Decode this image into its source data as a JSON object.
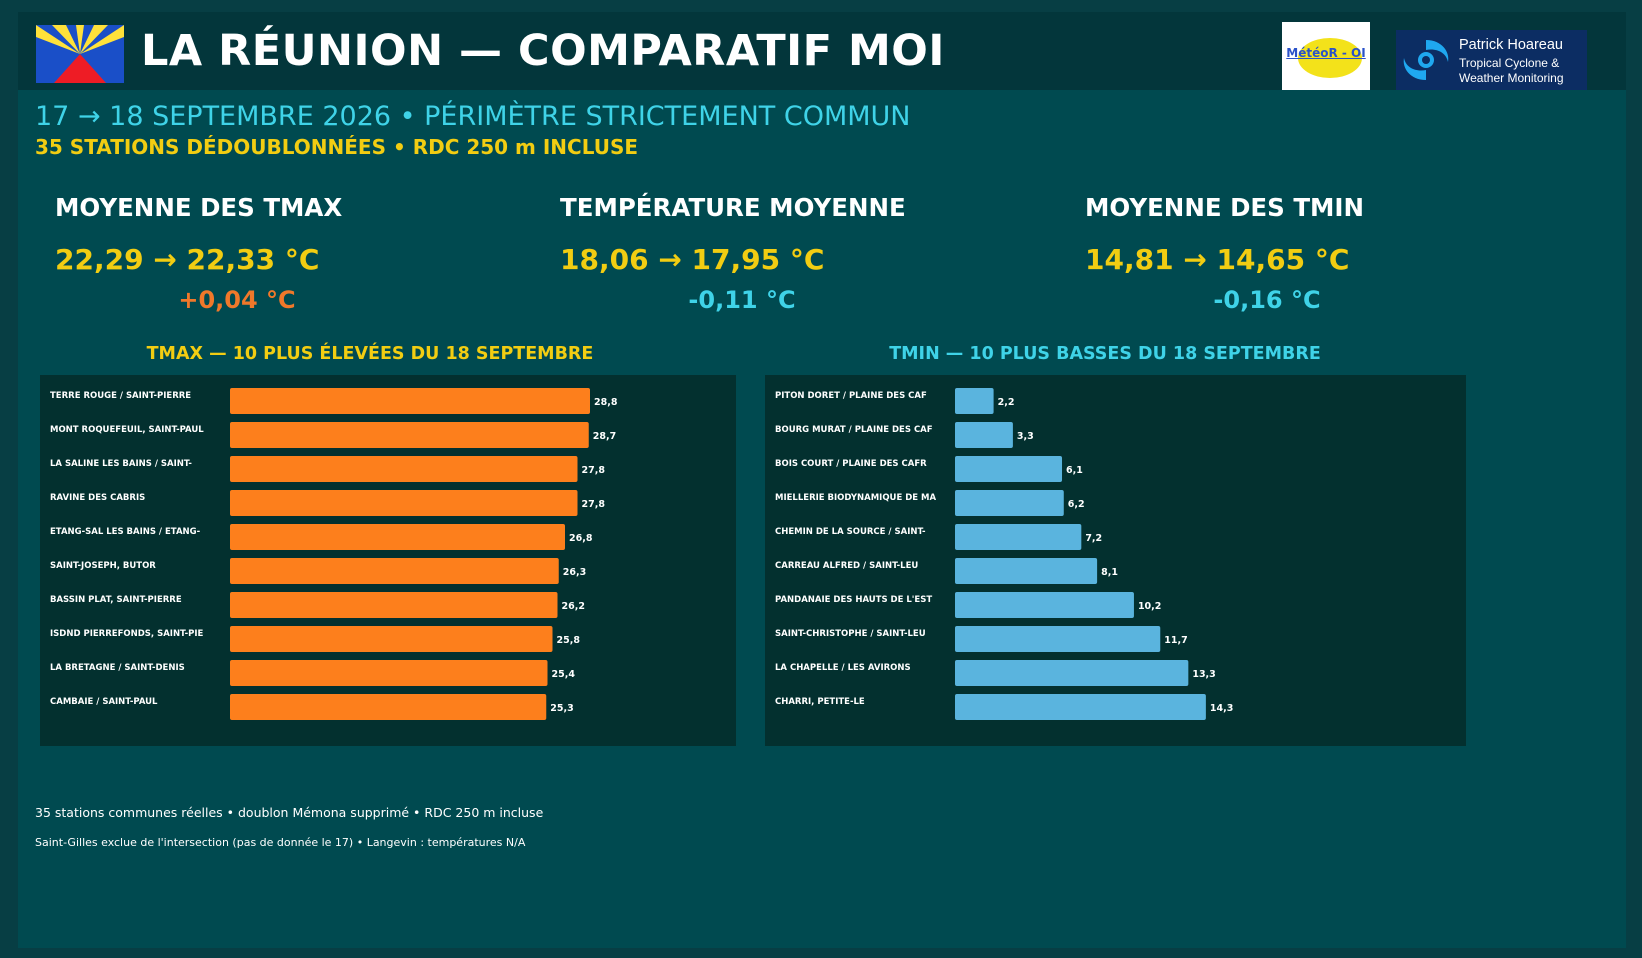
{
  "header": {
    "title": "LA RÉUNION — COMPARATIF MOI",
    "logo_meteo_text": "MétéoR - OI",
    "logo_ph_name": "Patrick Hoareau",
    "logo_ph_sub": "Tropical Cyclone & Weather Monitoring"
  },
  "subtitle": {
    "line1": "17 → 18 SEPTEMBRE 2026 • PÉRIMÈTRE STRICTEMENT COMMUN",
    "line2": "35 STATIONS DÉDOUBLONNÉES • RDC 250 m INCLUSE"
  },
  "stats": [
    {
      "label": "MOYENNE DES TMAX",
      "value": "22,29 → 22,33 °C",
      "delta": "+0,04 °C",
      "delta_color": "#f0782a"
    },
    {
      "label": "TEMPÉRATURE MOYENNE",
      "value": "18,06 → 17,95 °C",
      "delta": "-0,11 °C",
      "delta_color": "#3fd3e8"
    },
    {
      "label": "MOYENNE DES TMIN",
      "value": "14,81 → 14,65 °C",
      "delta": "-0,16 °C",
      "delta_color": "#3fd3e8"
    }
  ],
  "colors": {
    "tmax_bar": "#fd7f1c",
    "tmin_bar": "#5ab4de",
    "tmax_title": "#f2cd12",
    "tmin_title": "#3fd3e8"
  },
  "chart_data": [
    {
      "type": "bar",
      "orientation": "horizontal",
      "title": "TMAX — 10 PLUS ÉLEVÉES DU 18 SEPTEMBRE",
      "categories": [
        "TERRE ROUGE / SAINT-PIERRE",
        "MONT ROQUEFEUIL, SAINT-PAUL",
        "LA SALINE LES BAINS / SAINT-",
        "RAVINE DES CABRIS",
        "ETANG-SAL LES BAINS / ETANG-",
        "SAINT-JOSEPH, BUTOR",
        "BASSIN PLAT, SAINT-PIERRE",
        "ISDND PIERREFONDS, SAINT-PIE",
        "LA BRETAGNE / SAINT-DENIS",
        "CAMBAIE / SAINT-PAUL"
      ],
      "values": [
        28.8,
        28.7,
        27.8,
        27.8,
        26.8,
        26.3,
        26.2,
        25.8,
        25.4,
        25.3
      ],
      "value_labels": [
        "28,8",
        "28,7",
        "27,8",
        "27,8",
        "26,8",
        "26,3",
        "26,2",
        "25,8",
        "25,4",
        "25,3"
      ],
      "xlim": [
        0,
        40
      ]
    },
    {
      "type": "bar",
      "orientation": "horizontal",
      "title": "TMIN — 10 PLUS BASSES DU 18 SEPTEMBRE",
      "categories": [
        "PITON DORET / PLAINE DES CAF",
        "BOURG MURAT / PLAINE DES CAF",
        "BOIS COURT / PLAINE DES CAFR",
        "MIELLERIE BIODYNAMIQUE DE MA",
        "CHEMIN DE LA SOURCE / SAINT-",
        "CARREAU ALFRED / SAINT-LEU",
        "PANDANAIE DES HAUTS DE L'EST",
        "SAINT-CHRISTOPHE / SAINT-LEU",
        "LA CHAPELLE / LES AVIRONS",
        "CHARRI, PETITE-LE"
      ],
      "values": [
        2.2,
        3.3,
        6.1,
        6.2,
        7.2,
        8.1,
        10.2,
        11.7,
        13.3,
        14.3
      ],
      "value_labels": [
        "2,2",
        "3,3",
        "6,1",
        "6,2",
        "7,2",
        "8,1",
        "10,2",
        "11,7",
        "13,3",
        "14,3"
      ],
      "xlim": [
        0,
        28.5
      ]
    }
  ],
  "footer": {
    "line1": "35 stations communes réelles • doublon Mémona supprimé • RDC 250 m incluse",
    "line2": "Saint-Gilles exclue de l'intersection (pas de donnée le 17) • Langevin : températures N/A"
  }
}
